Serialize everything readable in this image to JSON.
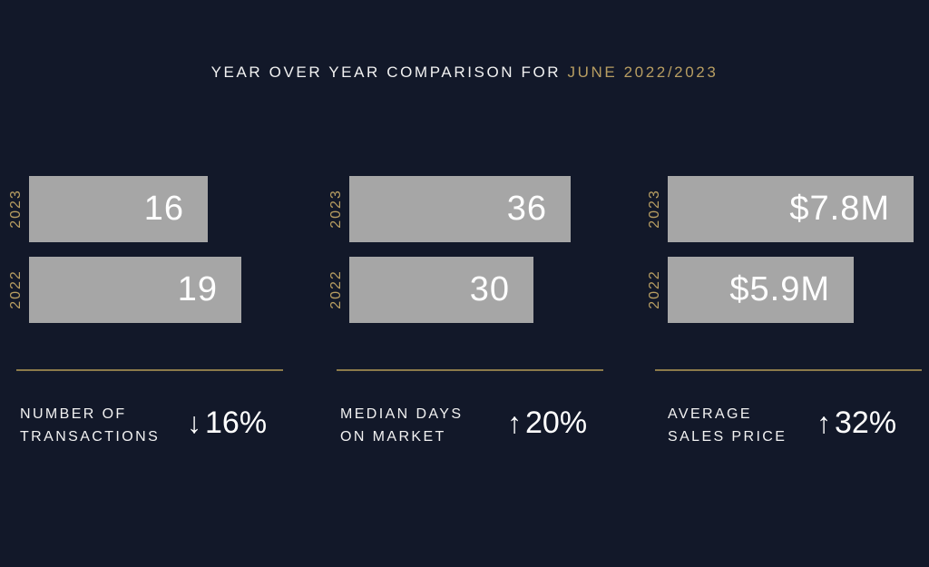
{
  "header": {
    "title": "YEAR OVER YEAR COMPARISON FOR",
    "title_accent": "JUNE 2022/2023"
  },
  "colors": {
    "background": "#121829",
    "bar": "#a6a6a6",
    "accent": "#b89e62",
    "rule": "#8c7a4a"
  },
  "panels": [
    {
      "label_line1": "NUMBER OF",
      "label_line2": "TRANSACTIONS",
      "direction": "down",
      "arrow": "↓",
      "change": "16%"
    },
    {
      "label_line1": "MEDIAN DAYS",
      "label_line2": "ON MARKET",
      "direction": "up",
      "arrow": "↑",
      "change": "20%"
    },
    {
      "label_line1": "AVERAGE",
      "label_line2": "SALES PRICE",
      "direction": "up",
      "arrow": "↑",
      "change": "32%"
    }
  ],
  "chart_data": [
    {
      "type": "bar",
      "orientation": "horizontal",
      "categories": [
        "2023",
        "2022"
      ],
      "values": [
        16,
        19
      ],
      "value_labels": [
        "16",
        "19"
      ],
      "xlim": [
        0,
        22
      ]
    },
    {
      "type": "bar",
      "orientation": "horizontal",
      "categories": [
        "2023",
        "2022"
      ],
      "values": [
        36,
        30
      ],
      "value_labels": [
        "36",
        "30"
      ],
      "xlim": [
        0,
        40
      ]
    },
    {
      "type": "bar",
      "orientation": "horizontal",
      "categories": [
        "2023",
        "2022"
      ],
      "values": [
        7.8,
        5.9
      ],
      "value_labels": [
        "$7.8M",
        "$5.9M"
      ],
      "xlim": [
        0,
        7.8
      ]
    }
  ]
}
